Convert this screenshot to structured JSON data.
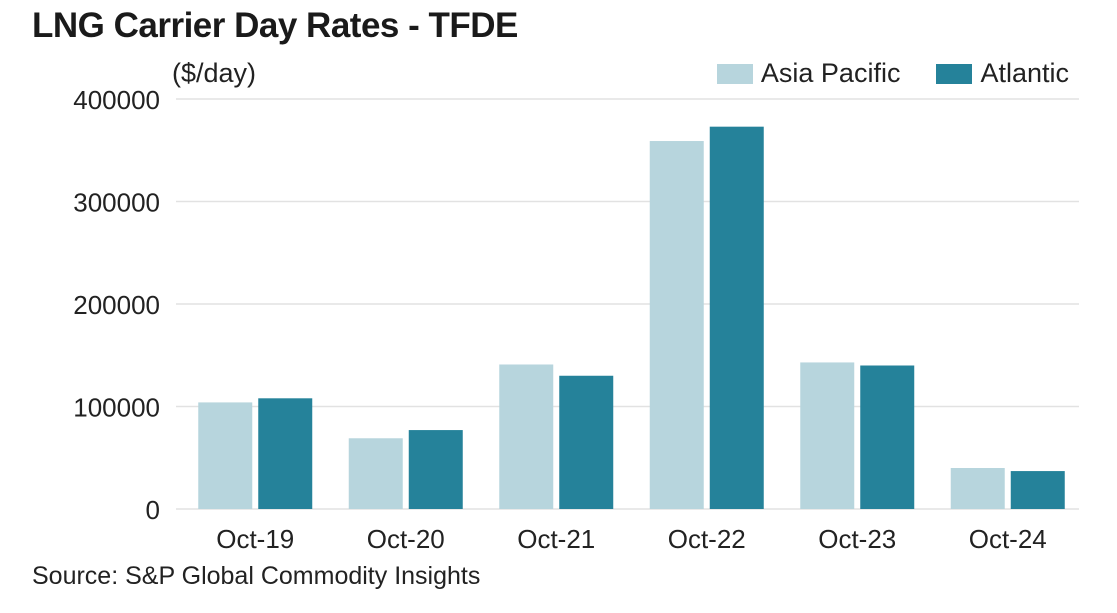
{
  "title": "LNG Carrier Day Rates - TFDE",
  "unit": "($/day)",
  "source": "Source: S&P Global Commodity Insights",
  "colors": {
    "asia_pacific": "#b7d5dd",
    "atlantic": "#25829a",
    "grid": "#e2e2e2"
  },
  "chart_data": {
    "type": "bar",
    "title": "LNG Carrier Day Rates - TFDE",
    "ylabel": "($/day)",
    "xlabel": "",
    "categories": [
      "Oct-19",
      "Oct-20",
      "Oct-21",
      "Oct-22",
      "Oct-23",
      "Oct-24"
    ],
    "series": [
      {
        "name": "Asia Pacific",
        "color": "#b7d5dd",
        "values": [
          104000,
          69000,
          141000,
          359000,
          143000,
          40000
        ]
      },
      {
        "name": "Atlantic",
        "color": "#25829a",
        "values": [
          108000,
          77000,
          130000,
          373000,
          140000,
          37000
        ]
      }
    ],
    "ylim": [
      0,
      400000
    ],
    "yticks": [
      0,
      100000,
      200000,
      300000,
      400000
    ],
    "ytick_labels": [
      "0",
      "100000",
      "200000",
      "300000",
      "400000"
    ],
    "grid": true,
    "legend_position": "top-right"
  }
}
